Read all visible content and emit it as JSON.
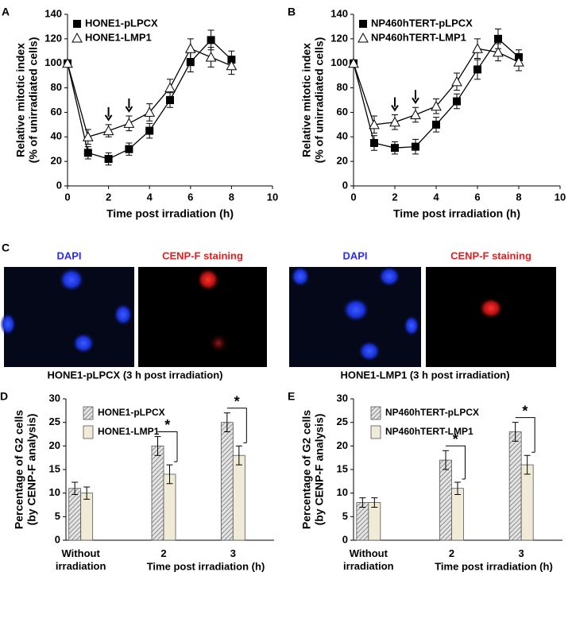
{
  "chart_data": [
    {
      "type": "line",
      "panel": "A",
      "x_label": "Time post irradiation (h)",
      "y_label": [
        "Relative mitotic index",
        "(% of unirradiated cells)"
      ],
      "x": [
        0,
        1,
        2,
        3,
        4,
        5,
        6,
        7,
        8
      ],
      "xlim": [
        0,
        10
      ],
      "xticks": [
        0,
        2,
        4,
        6,
        8,
        10
      ],
      "ylim": [
        0,
        140
      ],
      "yticks": [
        0,
        20,
        40,
        60,
        80,
        100,
        120,
        140
      ],
      "arrows_x": [
        2,
        3
      ],
      "series": [
        {
          "name": "HONE1-pLPCX",
          "color": "#000000",
          "marker": "square",
          "values": [
            100,
            27,
            22,
            30,
            45,
            70,
            101,
            119,
            103
          ],
          "errors": [
            0,
            5,
            5,
            5,
            6,
            6,
            8,
            8,
            7
          ]
        },
        {
          "name": "HONE1-LMP1",
          "color": "#000000",
          "marker": "triangle",
          "values": [
            100,
            40,
            45,
            51,
            60,
            80,
            112,
            105,
            98
          ],
          "errors": [
            0,
            6,
            5,
            6,
            7,
            7,
            8,
            8,
            7
          ]
        }
      ]
    },
    {
      "type": "line",
      "panel": "B",
      "x_label": "Time post irradiation (h)",
      "y_label": [
        "Relative mitotic index",
        "(% of unirradiated cells)"
      ],
      "x": [
        0,
        1,
        2,
        3,
        4,
        5,
        6,
        7,
        8
      ],
      "xlim": [
        0,
        10
      ],
      "xticks": [
        0,
        2,
        4,
        6,
        8,
        10
      ],
      "ylim": [
        0,
        140
      ],
      "yticks": [
        0,
        20,
        40,
        60,
        80,
        100,
        120,
        140
      ],
      "arrows_x": [
        2,
        3
      ],
      "series": [
        {
          "name": "NP460hTERT-pLPCX",
          "color": "#000000",
          "marker": "square",
          "values": [
            100,
            35,
            31,
            32,
            50,
            69,
            95,
            120,
            105
          ],
          "errors": [
            0,
            6,
            5,
            6,
            6,
            6,
            8,
            8,
            6
          ]
        },
        {
          "name": "NP460hTERT-LMP1",
          "color": "#000000",
          "marker": "triangle",
          "values": [
            100,
            50,
            52,
            58,
            65,
            85,
            112,
            109,
            101
          ],
          "errors": [
            0,
            7,
            6,
            6,
            6,
            7,
            8,
            7,
            7
          ]
        }
      ]
    },
    {
      "type": "bar",
      "panel": "D",
      "x_label": "Time post irradiation (h)",
      "y_label": [
        "Percentage of G2 cells",
        "(by CENP-F analysis)"
      ],
      "categories": [
        "Without irradiation",
        "2",
        "3"
      ],
      "ylim": [
        0,
        30
      ],
      "yticks": [
        0,
        5,
        10,
        15,
        20,
        25,
        30
      ],
      "annotations": [
        {
          "text": "*",
          "category": "2"
        },
        {
          "text": "*",
          "category": "3"
        }
      ],
      "series": [
        {
          "name": "HONE1-pLPCX",
          "color": "#d8d8d8",
          "hatch": true,
          "values": [
            11,
            20,
            25
          ],
          "errors": [
            1.3,
            2,
            2
          ]
        },
        {
          "name": "HONE1-LMP1",
          "color": "#efebd6",
          "hatch": false,
          "values": [
            10,
            14,
            18
          ],
          "errors": [
            1.3,
            2,
            2
          ]
        }
      ]
    },
    {
      "type": "bar",
      "panel": "E",
      "x_label": "Time post irradiation (h)",
      "y_label": [
        "Percentage of G2 cells",
        "(by CENP-F analysis)"
      ],
      "categories": [
        "Without irradiation",
        "2",
        "3"
      ],
      "ylim": [
        0,
        30
      ],
      "yticks": [
        0,
        5,
        10,
        15,
        20,
        25,
        30
      ],
      "annotations": [
        {
          "text": "*",
          "category": "2"
        },
        {
          "text": "*",
          "category": "3"
        }
      ],
      "series": [
        {
          "name": "NP460hTERT-pLPCX",
          "color": "#d8d8d8",
          "hatch": true,
          "values": [
            8,
            17,
            23
          ],
          "errors": [
            1,
            2,
            2
          ]
        },
        {
          "name": "NP460hTERT-LMP1",
          "color": "#efebd6",
          "hatch": false,
          "values": [
            8,
            11,
            16
          ],
          "errors": [
            1,
            1.3,
            2
          ]
        }
      ]
    }
  ],
  "image_panel": {
    "letter": "C",
    "pairs": [
      {
        "images": [
          "DAPI",
          "CENP-F staining"
        ],
        "caption": "HONE1-pLPCX (3 h post irradiation)"
      },
      {
        "images": [
          "DAPI",
          "CENP-F staining"
        ],
        "caption": "HONE1-LMP1 (3 h post irradiation)"
      }
    ]
  }
}
